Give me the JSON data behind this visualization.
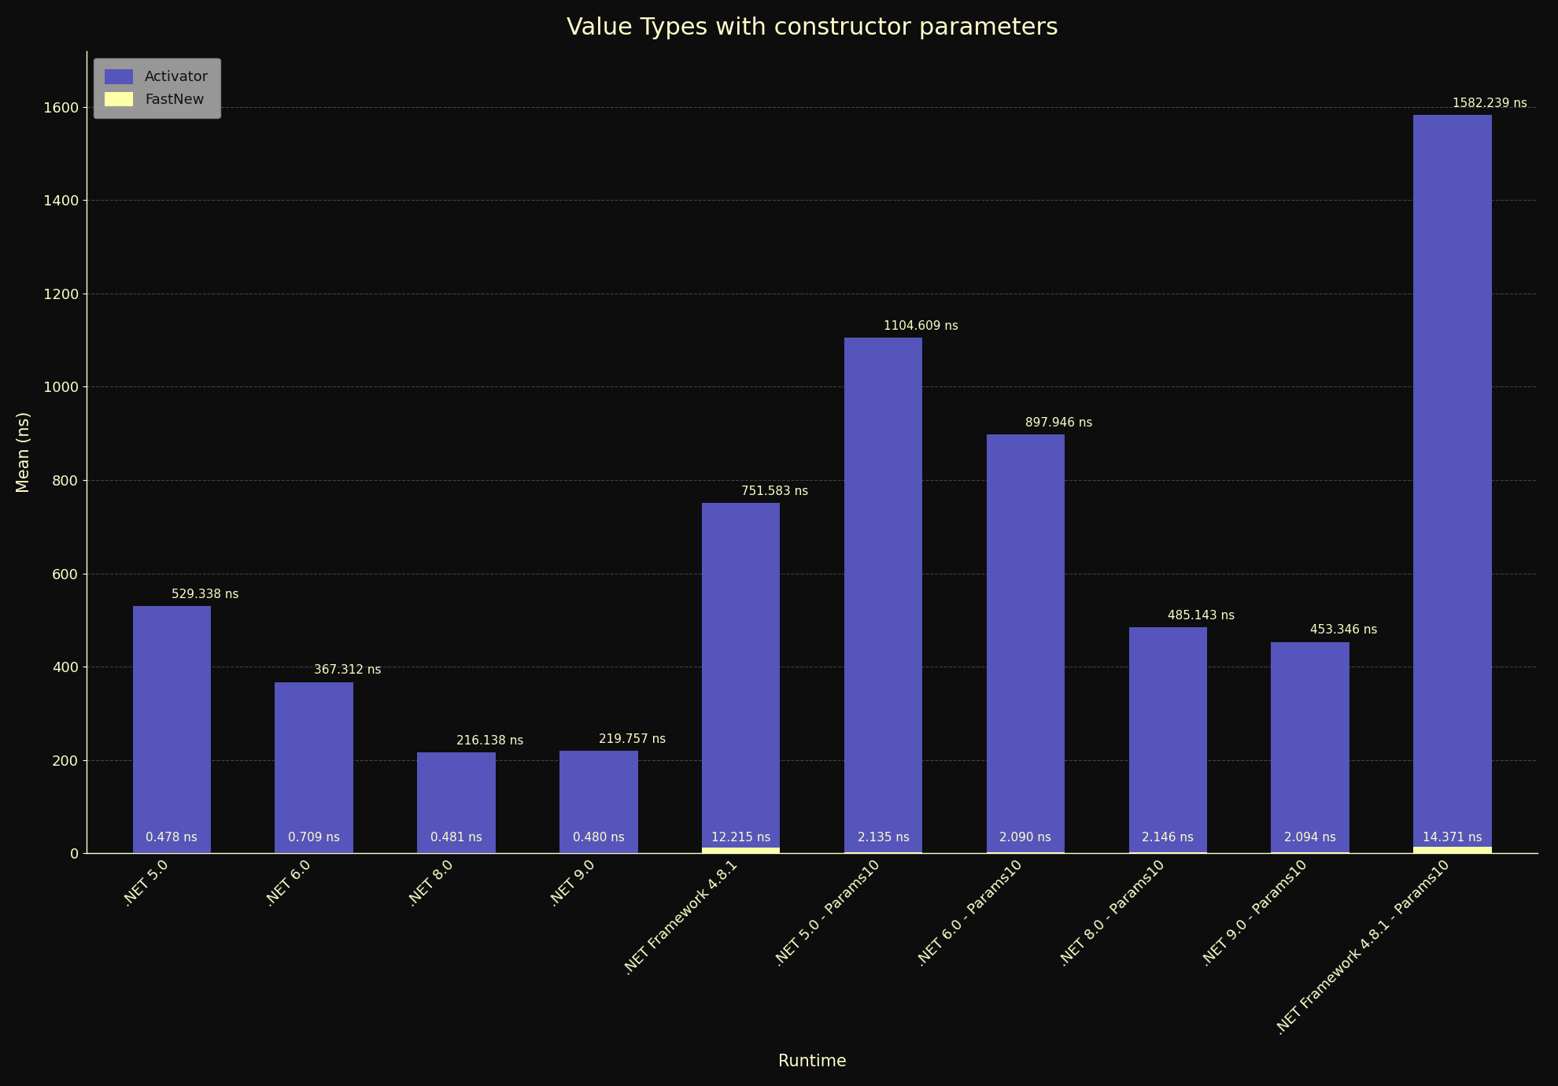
{
  "title": "Value Types with constructor parameters",
  "xlabel": "Runtime",
  "ylabel": "Mean (ns)",
  "background_color": "#0d0d0d",
  "text_color": "#ffffcc",
  "grid_color": "#666666",
  "activator_color": "#5555bb",
  "fastnew_color": "#ffffaa",
  "legend_bg": "#b0b0b0",
  "legend_text_color": "#111111",
  "categories": [
    ".NET 5.0",
    ".NET 6.0",
    ".NET 8.0",
    ".NET 9.0",
    ".NET Framework 4.8.1",
    ".NET 5.0 - Params10",
    ".NET 6.0 - Params10",
    ".NET 8.0 - Params10",
    ".NET 9.0 - Params10",
    ".NET Framework 4.8.1 - Params10"
  ],
  "activator_values": [
    529.338,
    367.312,
    216.138,
    219.757,
    751.583,
    1104.609,
    897.946,
    485.143,
    453.346,
    1582.239
  ],
  "fastnew_values": [
    0.478,
    0.709,
    0.481,
    0.48,
    12.215,
    2.135,
    2.09,
    2.146,
    2.094,
    14.371
  ],
  "activator_labels": [
    "529.338 ns",
    "367.312 ns",
    "216.138 ns",
    "219.757 ns",
    "751.583 ns",
    "1104.609 ns",
    "897.946 ns",
    "485.143 ns",
    "453.346 ns",
    "1582.239 ns"
  ],
  "fastnew_labels": [
    "0.478 ns",
    "0.709 ns",
    "0.481 ns",
    "0.480 ns",
    "12.215 ns",
    "2.135 ns",
    "2.090 ns",
    "2.146 ns",
    "2.094 ns",
    "14.371 ns"
  ],
  "ylim": [
    0,
    1720
  ],
  "bar_width": 0.55,
  "title_fontsize": 22,
  "tick_fontsize": 13,
  "axis_label_fontsize": 15,
  "legend_fontsize": 13,
  "value_label_fontsize": 11
}
